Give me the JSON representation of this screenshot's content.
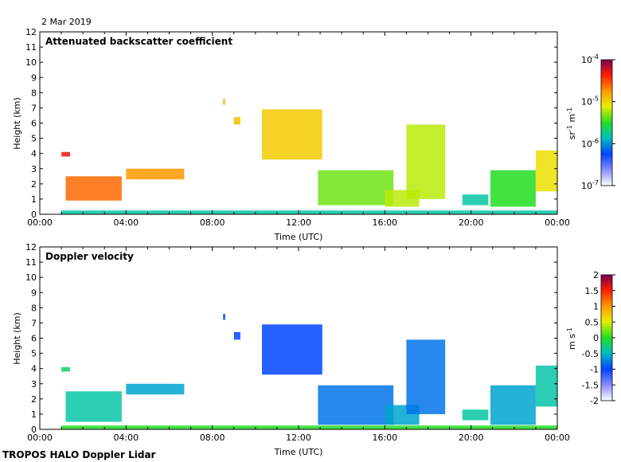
{
  "date": "2 Mar 2019",
  "footer": "TROPOS HALO Doppler Lidar",
  "chart_data": [
    {
      "type": "heatmap",
      "title": "Attenuated backscatter coefficient",
      "xlabel": "Time (UTC)",
      "ylabel": "Height (km)",
      "xticks": [
        "00:00",
        "04:00",
        "08:00",
        "12:00",
        "16:00",
        "20:00",
        "00:00"
      ],
      "xlim": [
        0,
        24
      ],
      "yticks": [
        "0",
        "1",
        "2",
        "3",
        "4",
        "5",
        "6",
        "7",
        "8",
        "9",
        "10",
        "11",
        "12"
      ],
      "ylim": [
        0,
        12
      ],
      "colorbar": {
        "label": "sr-1 m-1",
        "scale": "log",
        "ticks": [
          "10-7",
          "10-6",
          "10-5",
          "10-4"
        ],
        "range": [
          1e-07,
          0.0001
        ]
      },
      "features": [
        {
          "t0": 1.0,
          "t1": 1.4,
          "h0": 3.8,
          "h1": 4.1,
          "level": 0.9
        },
        {
          "t0": 1.2,
          "t1": 3.8,
          "h0": 0.9,
          "h1": 2.5,
          "level": 0.8
        },
        {
          "t0": 4.0,
          "t1": 6.7,
          "h0": 2.3,
          "h1": 3.0,
          "level": 0.75
        },
        {
          "t0": 8.5,
          "t1": 8.6,
          "h0": 7.2,
          "h1": 7.6,
          "level": 0.7
        },
        {
          "t0": 9.0,
          "t1": 9.3,
          "h0": 5.9,
          "h1": 6.4,
          "level": 0.7
        },
        {
          "t0": 10.3,
          "t1": 13.1,
          "h0": 3.6,
          "h1": 6.9,
          "level": 0.68
        },
        {
          "t0": 12.9,
          "t1": 16.4,
          "h0": 0.6,
          "h1": 2.9,
          "level": 0.55
        },
        {
          "t0": 16.0,
          "t1": 17.6,
          "h0": 0.5,
          "h1": 1.6,
          "level": 0.6
        },
        {
          "t0": 17.0,
          "t1": 18.8,
          "h0": 1.0,
          "h1": 5.9,
          "level": 0.6
        },
        {
          "t0": 19.6,
          "t1": 20.8,
          "h0": 0.6,
          "h1": 1.3,
          "level": 0.4
        },
        {
          "t0": 20.9,
          "t1": 23.0,
          "h0": 0.5,
          "h1": 2.9,
          "level": 0.5
        },
        {
          "t0": 23.0,
          "t1": 24.0,
          "h0": 1.5,
          "h1": 4.2,
          "level": 0.65
        },
        {
          "t0": 1.0,
          "t1": 24.0,
          "h0": 0.0,
          "h1": 0.25,
          "level": 0.4
        }
      ]
    },
    {
      "type": "heatmap",
      "title": "Doppler velocity",
      "xlabel": "Time (UTC)",
      "ylabel": "Height (km)",
      "xticks": [
        "00:00",
        "04:00",
        "08:00",
        "12:00",
        "16:00",
        "20:00",
        "00:00"
      ],
      "xlim": [
        0,
        24
      ],
      "yticks": [
        "0",
        "1",
        "2",
        "3",
        "4",
        "5",
        "6",
        "7",
        "8",
        "9",
        "10",
        "11",
        "12"
      ],
      "ylim": [
        0,
        12
      ],
      "colorbar": {
        "label": "m s-1",
        "scale": "linear",
        "ticks": [
          "2",
          "1.5",
          "1",
          "0.5",
          "0",
          "-0.5",
          "-1",
          "-1.5",
          "-2"
        ],
        "range": [
          -2,
          2
        ]
      },
      "features": [
        {
          "t0": 1.0,
          "t1": 1.4,
          "h0": 3.8,
          "h1": 4.1,
          "level": 0.45
        },
        {
          "t0": 1.2,
          "t1": 3.8,
          "h0": 0.5,
          "h1": 2.5,
          "level": 0.4
        },
        {
          "t0": 4.0,
          "t1": 6.7,
          "h0": 2.3,
          "h1": 3.0,
          "level": 0.35
        },
        {
          "t0": 8.5,
          "t1": 8.6,
          "h0": 7.2,
          "h1": 7.6,
          "level": 0.25
        },
        {
          "t0": 9.0,
          "t1": 9.3,
          "h0": 5.9,
          "h1": 6.4,
          "level": 0.25
        },
        {
          "t0": 10.3,
          "t1": 13.1,
          "h0": 3.6,
          "h1": 6.9,
          "level": 0.25
        },
        {
          "t0": 12.9,
          "t1": 16.4,
          "h0": 0.3,
          "h1": 2.9,
          "level": 0.3
        },
        {
          "t0": 16.0,
          "t1": 17.6,
          "h0": 0.3,
          "h1": 1.6,
          "level": 0.35
        },
        {
          "t0": 17.0,
          "t1": 18.8,
          "h0": 1.0,
          "h1": 5.9,
          "level": 0.3
        },
        {
          "t0": 19.6,
          "t1": 20.8,
          "h0": 0.6,
          "h1": 1.3,
          "level": 0.4
        },
        {
          "t0": 20.9,
          "t1": 23.0,
          "h0": 0.3,
          "h1": 2.9,
          "level": 0.35
        },
        {
          "t0": 23.0,
          "t1": 24.0,
          "h0": 1.5,
          "h1": 4.2,
          "level": 0.4
        },
        {
          "t0": 1.0,
          "t1": 24.0,
          "h0": 0.0,
          "h1": 0.25,
          "level": 0.5
        }
      ]
    }
  ]
}
